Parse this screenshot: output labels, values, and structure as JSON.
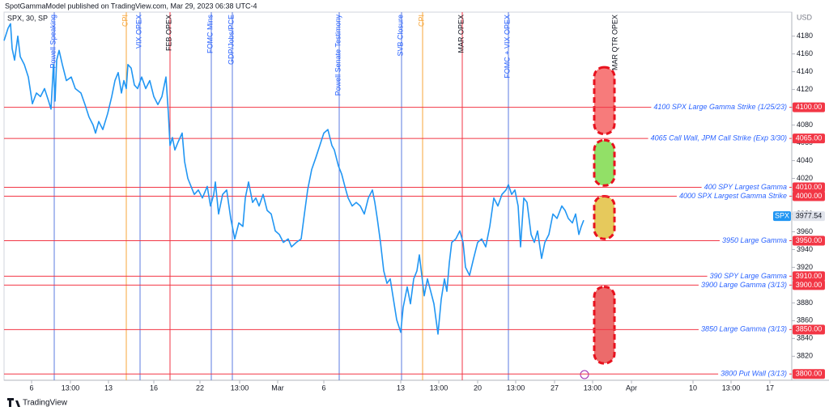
{
  "header": {
    "publisher": "SpotGammaModel published on TradingView.com, Mar 29, 2023 06:38 UTC-4",
    "symbol": "SPX, 30, SP",
    "currency": "USD",
    "footer": "TradingView"
  },
  "chart_data": {
    "type": "line",
    "series": [
      {
        "name": "SPX",
        "color": "#2196f3",
        "x": [
          0,
          5,
          8,
          10,
          13,
          17,
          20,
          25,
          30,
          35,
          40,
          45,
          50,
          55,
          58,
          61,
          63,
          65,
          68,
          72,
          77,
          83,
          88,
          95,
          100,
          105,
          110,
          113,
          117,
          122,
          128,
          133,
          137,
          141,
          145,
          148,
          151,
          153,
          157,
          161,
          165,
          170,
          175,
          180,
          185,
          190,
          195,
          200,
          203,
          205,
          208,
          211,
          215,
          220,
          223,
          227,
          231,
          235,
          240,
          245,
          251,
          255,
          259,
          261,
          265,
          270,
          275,
          280,
          285,
          290,
          295,
          298,
          302,
          307,
          311,
          315,
          320,
          325,
          330,
          335,
          340,
          345,
          351,
          355,
          361,
          367,
          371,
          375,
          380,
          385,
          390,
          395,
          400,
          405,
          408,
          413,
          417,
          421,
          425,
          430,
          435,
          440,
          445,
          450,
          455,
          458,
          461,
          465,
          469,
          473,
          477,
          481,
          485,
          490,
          493,
          498,
          502,
          506,
          510,
          513,
          516,
          519,
          523,
          527,
          531,
          536,
          540,
          544,
          547,
          550,
          553,
          558,
          563,
          567,
          570,
          575,
          580,
          585,
          590,
          595,
          600,
          605,
          610,
          615,
          620,
          623,
          627,
          631,
          635,
          638,
          642,
          646,
          651,
          655,
          659,
          664,
          668,
          673,
          678,
          683,
          689,
          693,
          697,
          702,
          706,
          710,
          713,
          716
        ],
        "values": [
          4175,
          4189,
          4194,
          4166,
          4153,
          4180,
          4157,
          4148,
          4134,
          4104,
          4116,
          4112,
          4121,
          4107,
          4098,
          4148,
          4107,
          4153,
          4164,
          4148,
          4130,
          4134,
          4121,
          4116,
          4103,
          4089,
          4080,
          4071,
          4084,
          4075,
          4093,
          4112,
          4130,
          4139,
          4116,
          4130,
          4121,
          4148,
          4144,
          4125,
          4121,
          4134,
          4121,
          4130,
          4112,
          4103,
          4112,
          4134,
          4093,
          4057,
          4066,
          4052,
          4061,
          4071,
          4039,
          4020,
          4011,
          4002,
          4007,
          3998,
          4011,
          3989,
          4002,
          4016,
          3980,
          4002,
          4007,
          3975,
          3952,
          3970,
          3966,
          3998,
          4016,
          3993,
          3998,
          3989,
          4002,
          3984,
          3980,
          3961,
          3957,
          3948,
          3952,
          3943,
          3948,
          3952,
          3980,
          4007,
          4030,
          4043,
          4057,
          4071,
          4075,
          4057,
          4052,
          4034,
          4025,
          4011,
          3998,
          3989,
          3993,
          3989,
          3980,
          3998,
          4007,
          3993,
          3975,
          3948,
          3916,
          3902,
          3907,
          3884,
          3861,
          3847,
          3875,
          3898,
          3879,
          3907,
          3916,
          3934,
          3911,
          3888,
          3907,
          3893,
          3879,
          3845,
          3884,
          3907,
          3893,
          3925,
          3948,
          3952,
          3961,
          3948,
          3920,
          3911,
          3930,
          3948,
          3952,
          3943,
          3966,
          3998,
          3989,
          4002,
          4007,
          4013,
          4002,
          4007,
          3989,
          3943,
          3998,
          3993,
          3957,
          3948,
          3961,
          3930,
          3948,
          3957,
          3980,
          3975,
          3989,
          3984,
          3975,
          3970,
          3980,
          3957,
          3966,
          3973
        ]
      }
    ],
    "last_price": 3977.54,
    "xlim": [
      0,
      973
    ],
    "xticks": [
      {
        "value": 34,
        "label": "6"
      },
      {
        "value": 82,
        "label": "13:00"
      },
      {
        "value": 129,
        "label": "13"
      },
      {
        "value": 185,
        "label": "16"
      },
      {
        "value": 242,
        "label": "22"
      },
      {
        "value": 291,
        "label": "13:00"
      },
      {
        "value": 338,
        "label": "Mar"
      },
      {
        "value": 395,
        "label": "6"
      },
      {
        "value": 490,
        "label": "13"
      },
      {
        "value": 537,
        "label": "13:00"
      },
      {
        "value": 585,
        "label": "20"
      },
      {
        "value": 632,
        "label": "13:00"
      },
      {
        "value": 680,
        "label": "27"
      },
      {
        "value": 727,
        "label": "13:00"
      },
      {
        "value": 775,
        "label": "Apr"
      },
      {
        "value": 851,
        "label": "10"
      },
      {
        "value": 898,
        "label": "13:00"
      },
      {
        "value": 946,
        "label": "17"
      }
    ],
    "ylim": [
      3793,
      4207
    ],
    "yticks": [
      3820,
      3840,
      3860,
      3880,
      3900,
      3920,
      3940,
      3960,
      3980,
      4000,
      4020,
      4040,
      4060,
      4080,
      4100,
      4120,
      4140,
      4160,
      4180
    ],
    "grid": false,
    "levels": [
      {
        "value": 4100,
        "value_label": "4100.00",
        "text": "4100 SPX Large Gamma Strike (1/25/23)"
      },
      {
        "value": 4065,
        "value_label": "4065.00",
        "text": "4065 Call Wall, JPM Call Strike (Exp 3/30)"
      },
      {
        "value": 4010,
        "value_label": "4010.00",
        "text": "400 SPY Largest Gamma"
      },
      {
        "value": 4000,
        "value_label": "4000.00",
        "text": "4000 SPX Largest Gamma Strike"
      },
      {
        "value": 3950,
        "value_label": "3950.00",
        "text": "3950 Large Gamma"
      },
      {
        "value": 3910,
        "value_label": "3910.00",
        "text": "390 SPY Large Gamma"
      },
      {
        "value": 3900,
        "value_label": "3900.00",
        "text": "3900 Large Gamma (3/13)"
      },
      {
        "value": 3850,
        "value_label": "3850.00",
        "text": "3850 Large Gamma (3/13)"
      },
      {
        "value": 3800,
        "value_label": "3800.00",
        "text": "3800 Put Wall (3/13)"
      }
    ],
    "level_color": "#f23645",
    "events": [
      {
        "label": "Powell Speaking",
        "x": 62,
        "color": "#5b7be0",
        "text_color": "#2962ff"
      },
      {
        "label": "CPI",
        "x": 151,
        "color": "#f7a63a",
        "text_color": "#f7a63a"
      },
      {
        "label": "VIX OPEX",
        "x": 168,
        "color": "#5b7be0",
        "text_color": "#2962ff"
      },
      {
        "label": "FEB OPEX",
        "x": 205,
        "color": "#f23645",
        "text_color": "#131722"
      },
      {
        "label": "FOMC Mins",
        "x": 256,
        "color": "#5b7be0",
        "text_color": "#2962ff"
      },
      {
        "label": "GDP/Jobs/PCE",
        "x": 282,
        "color": "#5b7be0",
        "text_color": "#2962ff"
      },
      {
        "label": "Powell Senate Testimony",
        "x": 414,
        "color": "#5b7be0",
        "text_color": "#2962ff"
      },
      {
        "label": "SVB Closure",
        "x": 491,
        "color": "#5b7be0",
        "text_color": "#2962ff"
      },
      {
        "label": "CPI",
        "x": 517,
        "color": "#f7a63a",
        "text_color": "#f7a63a"
      },
      {
        "label": "MAR OPEX",
        "x": 566,
        "color": "#f23645",
        "text_color": "#131722"
      },
      {
        "label": "FOMC + VIX OPEX",
        "x": 623,
        "color": "#5b7be0",
        "text_color": "#2962ff"
      },
      {
        "label": "MAR QTR OPEX",
        "x": 756,
        "color": null,
        "text_color": "#131722"
      }
    ],
    "zones": [
      {
        "from": 4145,
        "to": 4070,
        "color": "#f77b7b"
      },
      {
        "from": 4063,
        "to": 4012,
        "color": "#92e067"
      },
      {
        "from": 4000,
        "to": 3952,
        "color": "#e6c95c"
      },
      {
        "from": 3898,
        "to": 3812,
        "color": "#ec6b6b"
      }
    ]
  }
}
